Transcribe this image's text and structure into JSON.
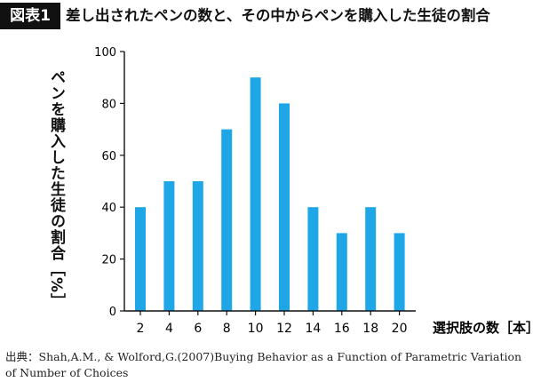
{
  "header": {
    "badge": "図表1",
    "title": "差し出されたペンの数と、その中からペンを購入した生徒の割合"
  },
  "source": "出典：Shah,A.M., & Wolford,G.(2007)Buying Behavior as a Function of Parametric Variation of Number of Choices",
  "chart_data": {
    "type": "bar",
    "title": "差し出されたペンの数と、その中からペンを購入した生徒の割合",
    "xlabel": "選択肢の数［本］",
    "ylabel": "ペンを購入した生徒の割合［%］",
    "categories": [
      "2",
      "4",
      "6",
      "8",
      "10",
      "12",
      "14",
      "16",
      "18",
      "20"
    ],
    "values": [
      40,
      50,
      50,
      70,
      90,
      80,
      40,
      30,
      40,
      30
    ],
    "ylim": [
      0,
      100
    ],
    "yticks": [
      0,
      20,
      40,
      60,
      80,
      100
    ],
    "bar_color": "#1ea6e6",
    "grid": false
  }
}
